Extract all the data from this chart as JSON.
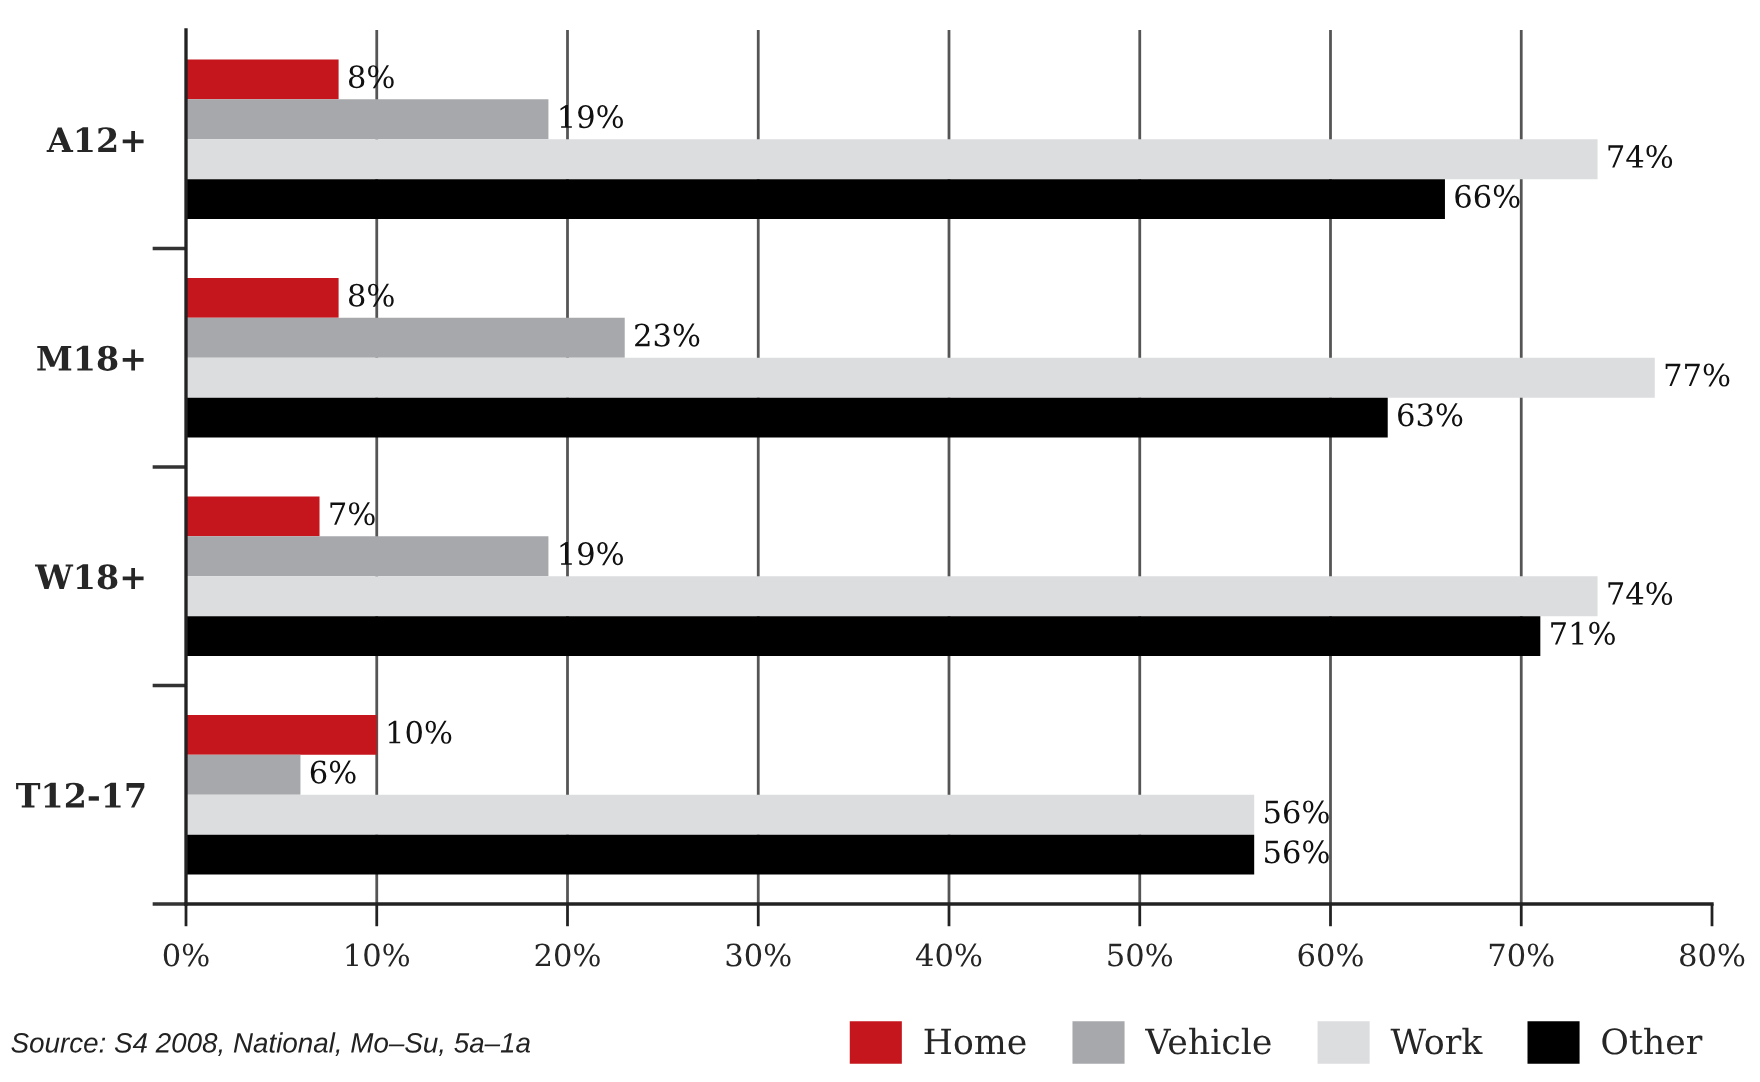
{
  "chart_data": {
    "type": "bar",
    "orientation": "horizontal",
    "categories": [
      "A12+",
      "M18+",
      "W18+",
      "T12-17"
    ],
    "series": [
      {
        "name": "Home",
        "color": "#c4161c",
        "values": [
          8,
          8,
          7,
          10
        ],
        "value_labels": [
          "8%",
          "8%",
          "7%",
          "10%"
        ]
      },
      {
        "name": "Vehicle",
        "color": "#a7a8ab",
        "values": [
          19,
          23,
          19,
          6
        ],
        "value_labels": [
          "19%",
          "23%",
          "19%",
          "6%"
        ]
      },
      {
        "name": "Work",
        "color": "#dcdddf",
        "values": [
          74,
          77,
          74,
          56
        ],
        "value_labels": [
          "74%",
          "77%",
          "74%",
          "56%"
        ]
      },
      {
        "name": "Other",
        "color": "#000000",
        "values": [
          66,
          63,
          71,
          56
        ],
        "value_labels": [
          "66%",
          "63%",
          "71%",
          "56%"
        ]
      }
    ],
    "xlim": [
      0,
      80
    ],
    "xticks": [
      {
        "value": 0,
        "label": "0%"
      },
      {
        "value": 10,
        "label": "10%"
      },
      {
        "value": 20,
        "label": "20%"
      },
      {
        "value": 30,
        "label": "30%"
      },
      {
        "value": 40,
        "label": "40%"
      },
      {
        "value": 50,
        "label": "50%"
      },
      {
        "value": 60,
        "label": "60%"
      },
      {
        "value": 70,
        "label": "70%"
      },
      {
        "value": 80,
        "label": "80%"
      }
    ],
    "grid": "x",
    "legend": "bottom right",
    "annotations": [
      "Source: S4 2008, National, Mo–Su, 5a–1a"
    ]
  }
}
